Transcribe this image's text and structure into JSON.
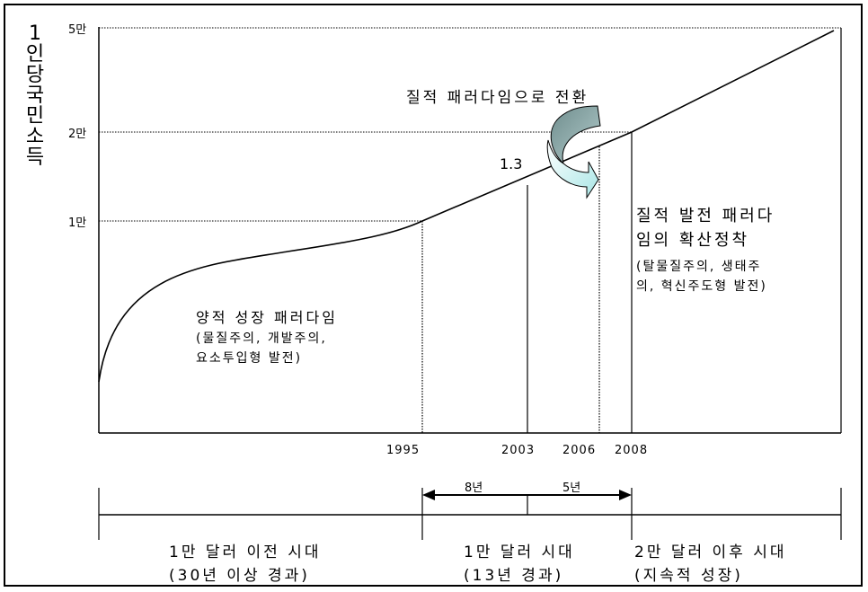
{
  "y_axis": {
    "label": "1인당국민소득",
    "ticks": [
      "5만",
      "2만",
      "1만"
    ]
  },
  "x_axis": {
    "ticks": [
      "1995",
      "2003",
      "2006",
      "2008"
    ]
  },
  "annotations": {
    "transition_title": "질적 패러다임으로 전환",
    "point_value": "1.3",
    "quantitative": {
      "title": "양적 성장 패러다임",
      "detail": [
        "(물질주의, 개발주의,",
        "요소투입형 발전)"
      ]
    },
    "qualitative": {
      "title": [
        "질적 발전 패러다",
        "임의 확산정착"
      ],
      "detail": [
        "(탈물질주의, 생태주",
        "의, 혁신주도형 발전)"
      ]
    }
  },
  "timeline": {
    "spans": [
      "8년",
      "5년"
    ],
    "eras": [
      {
        "name": "1만 달러 이전 시대",
        "detail": "(30년 이상 경과)"
      },
      {
        "name": "1만 달러 시대",
        "detail": "(13년 경과)"
      },
      {
        "name": "2만 달러 이후 시대",
        "detail": "(지속적 성장)"
      }
    ]
  },
  "colors": {
    "transition_arrow_dark": "#7f9c9c",
    "transition_arrow_light": "#c8ecec"
  }
}
